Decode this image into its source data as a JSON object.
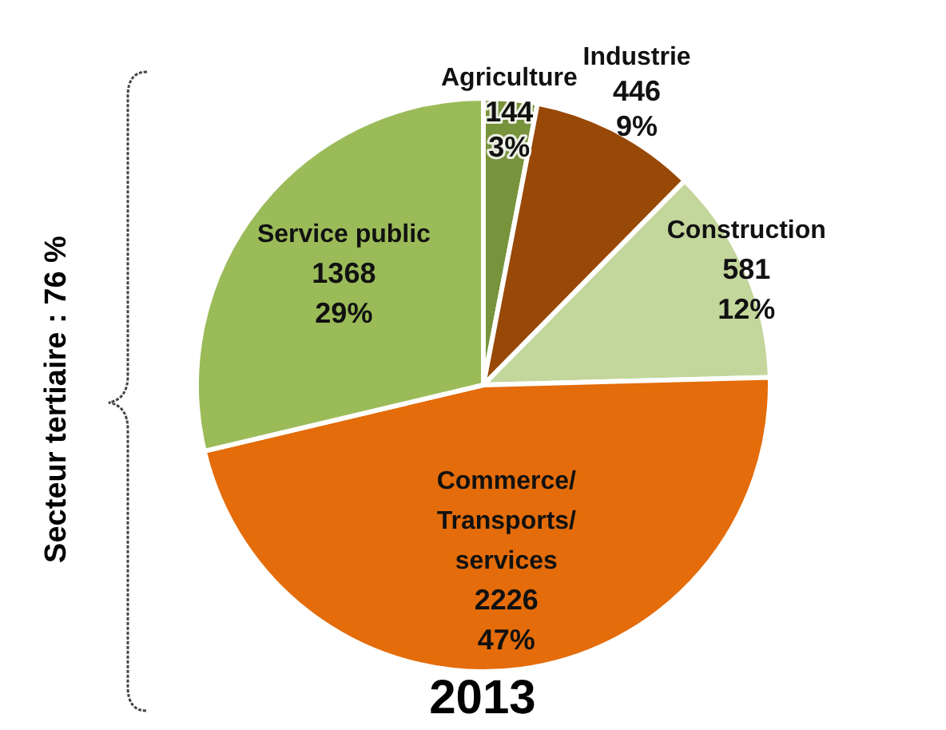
{
  "chart_data": {
    "type": "pie",
    "title": "2013",
    "categories": [
      "Agriculture",
      "Industrie",
      "Construction",
      "Commerce/Transports/services",
      "Service public"
    ],
    "values": [
      144,
      446,
      581,
      2226,
      1368
    ],
    "value_labels": [
      "144\n3%",
      "446\n9%",
      "581\n12%",
      "2226\n47%",
      "1368\n29%"
    ],
    "colors": [
      "#77933c",
      "#984807",
      "#c3d69b",
      "#e46c0a",
      "#9bbb59"
    ],
    "legend": false,
    "annotations": [
      "Secteur tertiaire : 76 %"
    ]
  }
}
